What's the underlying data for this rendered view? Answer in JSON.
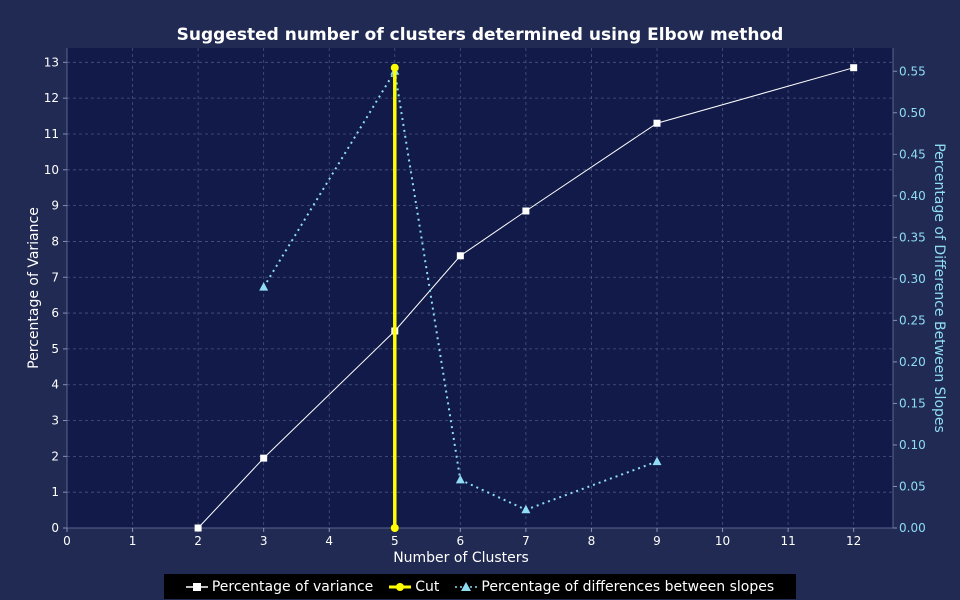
{
  "chart_data": {
    "type": "line",
    "title": "Suggested number of clusters determined using Elbow method",
    "xlabel": "Number of Clusters",
    "ylabel": "Percentage of Variance",
    "y2label": "Percentage of Difference Between Slopes",
    "xlim": [
      0,
      12.6
    ],
    "ylim": [
      0,
      13.4
    ],
    "y2lim": [
      0,
      0.578
    ],
    "x_ticks": [
      "0",
      "1",
      "2",
      "3",
      "4",
      "5",
      "6",
      "7",
      "8",
      "9",
      "10",
      "11",
      "12"
    ],
    "y_ticks": [
      "0",
      "1",
      "2",
      "3",
      "4",
      "5",
      "6",
      "7",
      "8",
      "9",
      "10",
      "11",
      "12",
      "13"
    ],
    "y2_ticks": [
      "0.00",
      "0.05",
      "0.10",
      "0.15",
      "0.20",
      "0.25",
      "0.30",
      "0.35",
      "0.40",
      "0.45",
      "0.50",
      "0.55"
    ],
    "grid": true,
    "legend_position": "bottom",
    "series": [
      {
        "name": "Percentage of variance",
        "axis": "left",
        "color": "#ffffff",
        "marker": "square",
        "line_style": "solid",
        "x": [
          2,
          3,
          5,
          6,
          7,
          9,
          12
        ],
        "y": [
          0.0,
          1.95,
          5.5,
          7.6,
          8.85,
          11.3,
          12.85
        ]
      },
      {
        "name": "Cut",
        "axis": "left",
        "color": "#ffff00",
        "marker": "circle",
        "line_style": "solid",
        "x": [
          5,
          5
        ],
        "y": [
          0,
          12.85
        ]
      },
      {
        "name": "Percentage of differences between slopes",
        "axis": "right",
        "color": "#8fdcf3",
        "marker": "triangle",
        "line_style": "dotted",
        "x": [
          3,
          5,
          6,
          7,
          9
        ],
        "y": [
          0.29,
          0.55,
          0.058,
          0.022,
          0.08
        ]
      }
    ]
  },
  "colors": {
    "background": "#202a52",
    "plot_background": "#111a48",
    "grid": "#4a5480",
    "axis_text": "#ffffff",
    "right_axis_text": "#8fdcf3"
  }
}
